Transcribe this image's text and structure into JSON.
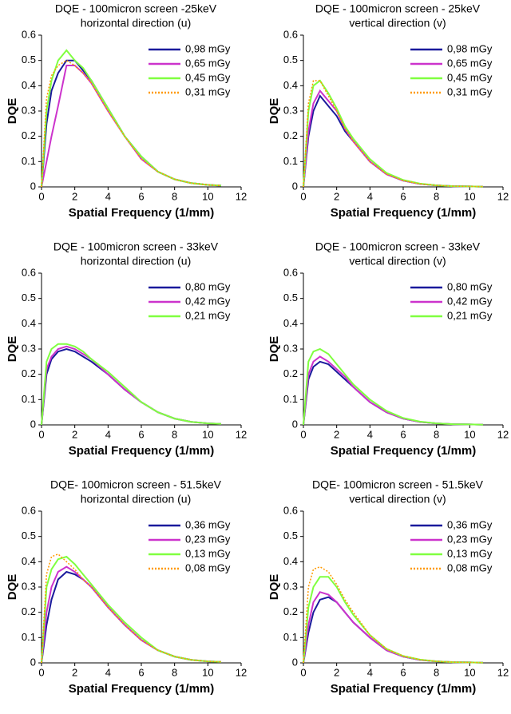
{
  "chart_data": [
    {
      "type": "line",
      "title": "DQE - 100micron screen -25keV",
      "subtitle": "horizontal direction (u)",
      "x_label": "Spatial Frequency (1/mm)",
      "y_label": "DQE",
      "x": [
        0,
        0.3,
        0.6,
        1,
        1.5,
        2,
        2.5,
        3,
        4,
        5,
        6,
        7,
        8,
        9,
        10,
        10.8
      ],
      "xlim": [
        0,
        12
      ],
      "xticks": [
        0,
        2,
        4,
        6,
        8,
        10,
        12
      ],
      "ylim": [
        0,
        0.6
      ],
      "yticks": [
        0,
        0.1,
        0.2,
        0.3,
        0.4,
        0.5,
        0.6
      ],
      "legend": "upper right",
      "series": [
        {
          "name": "0,98 mGy",
          "color": "#1a1a9c",
          "style": "solid",
          "values": [
            0,
            0.25,
            0.38,
            0.45,
            0.5,
            0.5,
            0.46,
            0.42,
            0.31,
            0.2,
            0.12,
            0.06,
            0.03,
            0.015,
            0.008,
            0.005
          ]
        },
        {
          "name": "0,65 mGy",
          "color": "#cc33cc",
          "style": "solid",
          "values": [
            0,
            0.1,
            0.2,
            0.32,
            0.48,
            0.48,
            0.45,
            0.41,
            0.3,
            0.2,
            0.11,
            0.06,
            0.03,
            0.015,
            0.008,
            0.005
          ]
        },
        {
          "name": "0,45 mGy",
          "color": "#80ff40",
          "style": "solid",
          "values": [
            0,
            0.3,
            0.42,
            0.5,
            0.54,
            0.5,
            0.47,
            0.42,
            0.31,
            0.2,
            0.12,
            0.06,
            0.03,
            0.015,
            0.008,
            0.005
          ]
        },
        {
          "name": "0,31 mGy",
          "color": "#ff9900",
          "style": "dotted",
          "values": [
            0,
            0.35,
            0.44,
            0.48,
            0.5,
            0.48,
            0.45,
            0.41,
            0.3,
            0.2,
            0.11,
            0.06,
            0.03,
            0.015,
            0.008,
            0.005
          ]
        }
      ]
    },
    {
      "type": "line",
      "title": "DQE - 100micron screen - 25keV",
      "subtitle": "vertical direction (v)",
      "x_label": "Spatial Frequency (1/mm)",
      "y_label": "DQE",
      "x": [
        0,
        0.3,
        0.6,
        1,
        1.5,
        2,
        2.5,
        3,
        4,
        5,
        6,
        7,
        8,
        9,
        10,
        10.8
      ],
      "xlim": [
        0,
        12
      ],
      "xticks": [
        0,
        2,
        4,
        6,
        8,
        10,
        12
      ],
      "ylim": [
        0,
        0.6
      ],
      "yticks": [
        0,
        0.1,
        0.2,
        0.3,
        0.4,
        0.5,
        0.6
      ],
      "legend": "upper right",
      "series": [
        {
          "name": "0,98 mGy",
          "color": "#1a1a9c",
          "style": "solid",
          "values": [
            0,
            0.2,
            0.3,
            0.36,
            0.32,
            0.28,
            0.22,
            0.18,
            0.1,
            0.05,
            0.025,
            0.012,
            0.006,
            0.003,
            0.002,
            0.001
          ]
        },
        {
          "name": "0,65 mGy",
          "color": "#cc33cc",
          "style": "solid",
          "values": [
            0,
            0.22,
            0.33,
            0.38,
            0.34,
            0.3,
            0.23,
            0.18,
            0.1,
            0.05,
            0.025,
            0.012,
            0.006,
            0.003,
            0.002,
            0.001
          ]
        },
        {
          "name": "0,45 mGy",
          "color": "#80ff40",
          "style": "solid",
          "values": [
            0,
            0.3,
            0.4,
            0.42,
            0.37,
            0.31,
            0.24,
            0.19,
            0.11,
            0.055,
            0.027,
            0.013,
            0.006,
            0.003,
            0.002,
            0.001
          ]
        },
        {
          "name": "0,31 mGy",
          "color": "#ff9900",
          "style": "dotted",
          "values": [
            0,
            0.33,
            0.42,
            0.42,
            0.36,
            0.3,
            0.23,
            0.18,
            0.1,
            0.05,
            0.025,
            0.012,
            0.006,
            0.003,
            0.002,
            0.001
          ]
        }
      ]
    },
    {
      "type": "line",
      "title": "DQE - 100micron screen - 33keV",
      "subtitle": "horizontal direction (u)",
      "x_label": "Spatial Frequency (1/mm)",
      "y_label": "DQE",
      "x": [
        0,
        0.3,
        0.6,
        1,
        1.5,
        2,
        2.5,
        3,
        4,
        5,
        6,
        7,
        8,
        9,
        10,
        10.8
      ],
      "xlim": [
        0,
        12
      ],
      "xticks": [
        0,
        2,
        4,
        6,
        8,
        10,
        12
      ],
      "ylim": [
        0,
        0.6
      ],
      "yticks": [
        0,
        0.1,
        0.2,
        0.3,
        0.4,
        0.5,
        0.6
      ],
      "legend": "upper right",
      "series": [
        {
          "name": "0,80 mGy",
          "color": "#1a1a9c",
          "style": "solid",
          "values": [
            0,
            0.2,
            0.26,
            0.29,
            0.3,
            0.29,
            0.27,
            0.25,
            0.2,
            0.14,
            0.09,
            0.05,
            0.025,
            0.012,
            0.006,
            0.004
          ]
        },
        {
          "name": "0,42 mGy",
          "color": "#cc33cc",
          "style": "solid",
          "values": [
            0,
            0.22,
            0.27,
            0.3,
            0.31,
            0.3,
            0.28,
            0.26,
            0.2,
            0.14,
            0.09,
            0.05,
            0.025,
            0.012,
            0.006,
            0.004
          ]
        },
        {
          "name": "0,21 mGy",
          "color": "#80ff40",
          "style": "solid",
          "values": [
            0,
            0.25,
            0.3,
            0.32,
            0.32,
            0.31,
            0.29,
            0.26,
            0.21,
            0.15,
            0.09,
            0.05,
            0.025,
            0.012,
            0.006,
            0.004
          ]
        }
      ]
    },
    {
      "type": "line",
      "title": "DQE - 100micron screen - 33keV",
      "subtitle": "vertical direction (v)",
      "x_label": "Spatial Frequency (1/mm)",
      "y_label": "DQE",
      "x": [
        0,
        0.3,
        0.6,
        1,
        1.5,
        2,
        2.5,
        3,
        4,
        5,
        6,
        7,
        8,
        9,
        10,
        10.8
      ],
      "xlim": [
        0,
        12
      ],
      "xticks": [
        0,
        2,
        4,
        6,
        8,
        10,
        12
      ],
      "ylim": [
        0,
        0.6
      ],
      "yticks": [
        0,
        0.1,
        0.2,
        0.3,
        0.4,
        0.5,
        0.6
      ],
      "legend": "upper right",
      "series": [
        {
          "name": "0,80 mGy",
          "color": "#1a1a9c",
          "style": "solid",
          "values": [
            0,
            0.18,
            0.23,
            0.25,
            0.24,
            0.21,
            0.18,
            0.15,
            0.09,
            0.05,
            0.025,
            0.012,
            0.006,
            0.003,
            0.002,
            0.001
          ]
        },
        {
          "name": "0,42 mGy",
          "color": "#cc33cc",
          "style": "solid",
          "values": [
            0,
            0.2,
            0.25,
            0.27,
            0.25,
            0.22,
            0.19,
            0.15,
            0.09,
            0.05,
            0.025,
            0.012,
            0.006,
            0.003,
            0.002,
            0.001
          ]
        },
        {
          "name": "0,21 mGy",
          "color": "#80ff40",
          "style": "solid",
          "values": [
            0,
            0.25,
            0.29,
            0.3,
            0.28,
            0.24,
            0.2,
            0.16,
            0.1,
            0.055,
            0.027,
            0.013,
            0.006,
            0.003,
            0.002,
            0.001
          ]
        }
      ]
    },
    {
      "type": "line",
      "title": "DQE- 100micron screen - 51.5keV",
      "subtitle": "horizontal direction (u)",
      "x_label": "Spatial Frequency (1/mm)",
      "y_label": "DQE",
      "x": [
        0,
        0.3,
        0.6,
        1,
        1.5,
        2,
        2.5,
        3,
        4,
        5,
        6,
        7,
        8,
        9,
        10,
        10.8
      ],
      "xlim": [
        0,
        12
      ],
      "xticks": [
        0,
        2,
        4,
        6,
        8,
        10,
        12
      ],
      "ylim": [
        0,
        0.6
      ],
      "yticks": [
        0,
        0.1,
        0.2,
        0.3,
        0.4,
        0.5,
        0.6
      ],
      "legend": "upper right",
      "series": [
        {
          "name": "0,36 mGy",
          "color": "#1a1a9c",
          "style": "solid",
          "values": [
            0,
            0.15,
            0.25,
            0.33,
            0.36,
            0.35,
            0.33,
            0.3,
            0.22,
            0.15,
            0.09,
            0.05,
            0.025,
            0.012,
            0.006,
            0.004
          ]
        },
        {
          "name": "0,23 mGy",
          "color": "#cc33cc",
          "style": "solid",
          "values": [
            0,
            0.2,
            0.3,
            0.36,
            0.38,
            0.36,
            0.33,
            0.3,
            0.22,
            0.15,
            0.09,
            0.05,
            0.025,
            0.012,
            0.006,
            0.004
          ]
        },
        {
          "name": "0,13 mGy",
          "color": "#80ff40",
          "style": "solid",
          "values": [
            0,
            0.3,
            0.37,
            0.41,
            0.42,
            0.39,
            0.35,
            0.31,
            0.23,
            0.16,
            0.1,
            0.05,
            0.025,
            0.012,
            0.006,
            0.004
          ]
        },
        {
          "name": "0,08 mGy",
          "color": "#ff9900",
          "style": "dotted",
          "values": [
            0,
            0.35,
            0.42,
            0.43,
            0.4,
            0.37,
            0.33,
            0.3,
            0.22,
            0.15,
            0.09,
            0.05,
            0.025,
            0.012,
            0.006,
            0.004
          ]
        }
      ]
    },
    {
      "type": "line",
      "title": "DQE- 100micron screen - 51.5keV",
      "subtitle": "vertical direction (v)",
      "x_label": "Spatial Frequency (1/mm)",
      "y_label": "DQE",
      "x": [
        0,
        0.3,
        0.6,
        1,
        1.5,
        2,
        2.5,
        3,
        4,
        5,
        6,
        7,
        8,
        9,
        10,
        10.8
      ],
      "xlim": [
        0,
        12
      ],
      "xticks": [
        0,
        2,
        4,
        6,
        8,
        10,
        12
      ],
      "ylim": [
        0,
        0.6
      ],
      "yticks": [
        0,
        0.1,
        0.2,
        0.3,
        0.4,
        0.5,
        0.6
      ],
      "legend": "upper right",
      "series": [
        {
          "name": "0,36 mGy",
          "color": "#1a1a9c",
          "style": "solid",
          "values": [
            0,
            0.12,
            0.2,
            0.25,
            0.26,
            0.24,
            0.2,
            0.16,
            0.1,
            0.05,
            0.025,
            0.012,
            0.006,
            0.003,
            0.002,
            0.001
          ]
        },
        {
          "name": "0,23 mGy",
          "color": "#cc33cc",
          "style": "solid",
          "values": [
            0,
            0.15,
            0.24,
            0.28,
            0.27,
            0.24,
            0.2,
            0.16,
            0.1,
            0.05,
            0.025,
            0.012,
            0.006,
            0.003,
            0.002,
            0.001
          ]
        },
        {
          "name": "0,13 mGy",
          "color": "#80ff40",
          "style": "solid",
          "values": [
            0,
            0.22,
            0.3,
            0.34,
            0.34,
            0.3,
            0.24,
            0.19,
            0.11,
            0.055,
            0.027,
            0.013,
            0.006,
            0.003,
            0.002,
            0.001
          ]
        },
        {
          "name": "0,08 mGy",
          "color": "#ff9900",
          "style": "dotted",
          "values": [
            0,
            0.3,
            0.37,
            0.38,
            0.36,
            0.31,
            0.25,
            0.2,
            0.11,
            0.055,
            0.027,
            0.013,
            0.006,
            0.003,
            0.002,
            0.001
          ]
        }
      ]
    }
  ]
}
